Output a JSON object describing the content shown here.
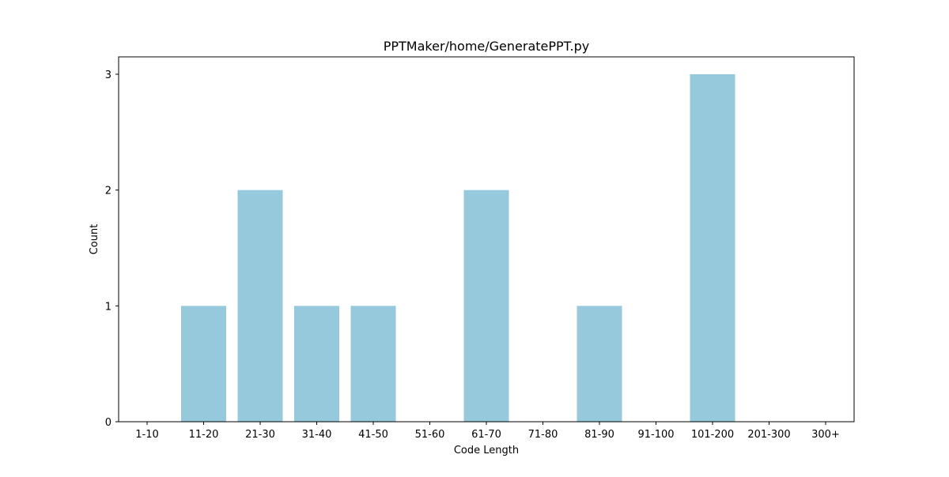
{
  "chart_data": {
    "type": "bar",
    "title": "PPTMaker/home/GeneratePPT.py",
    "xlabel": "Code Length",
    "ylabel": "Count",
    "categories": [
      "1-10",
      "11-20",
      "21-30",
      "31-40",
      "41-50",
      "51-60",
      "61-70",
      "71-80",
      "81-90",
      "91-100",
      "101-200",
      "201-300",
      "300+"
    ],
    "values": [
      0,
      1,
      2,
      1,
      1,
      0,
      2,
      0,
      1,
      0,
      3,
      0,
      0
    ],
    "ylim": [
      0,
      3.15
    ],
    "yticks": [
      0,
      1,
      2,
      3
    ],
    "grid": false,
    "bar_color": "#96c9dc"
  }
}
